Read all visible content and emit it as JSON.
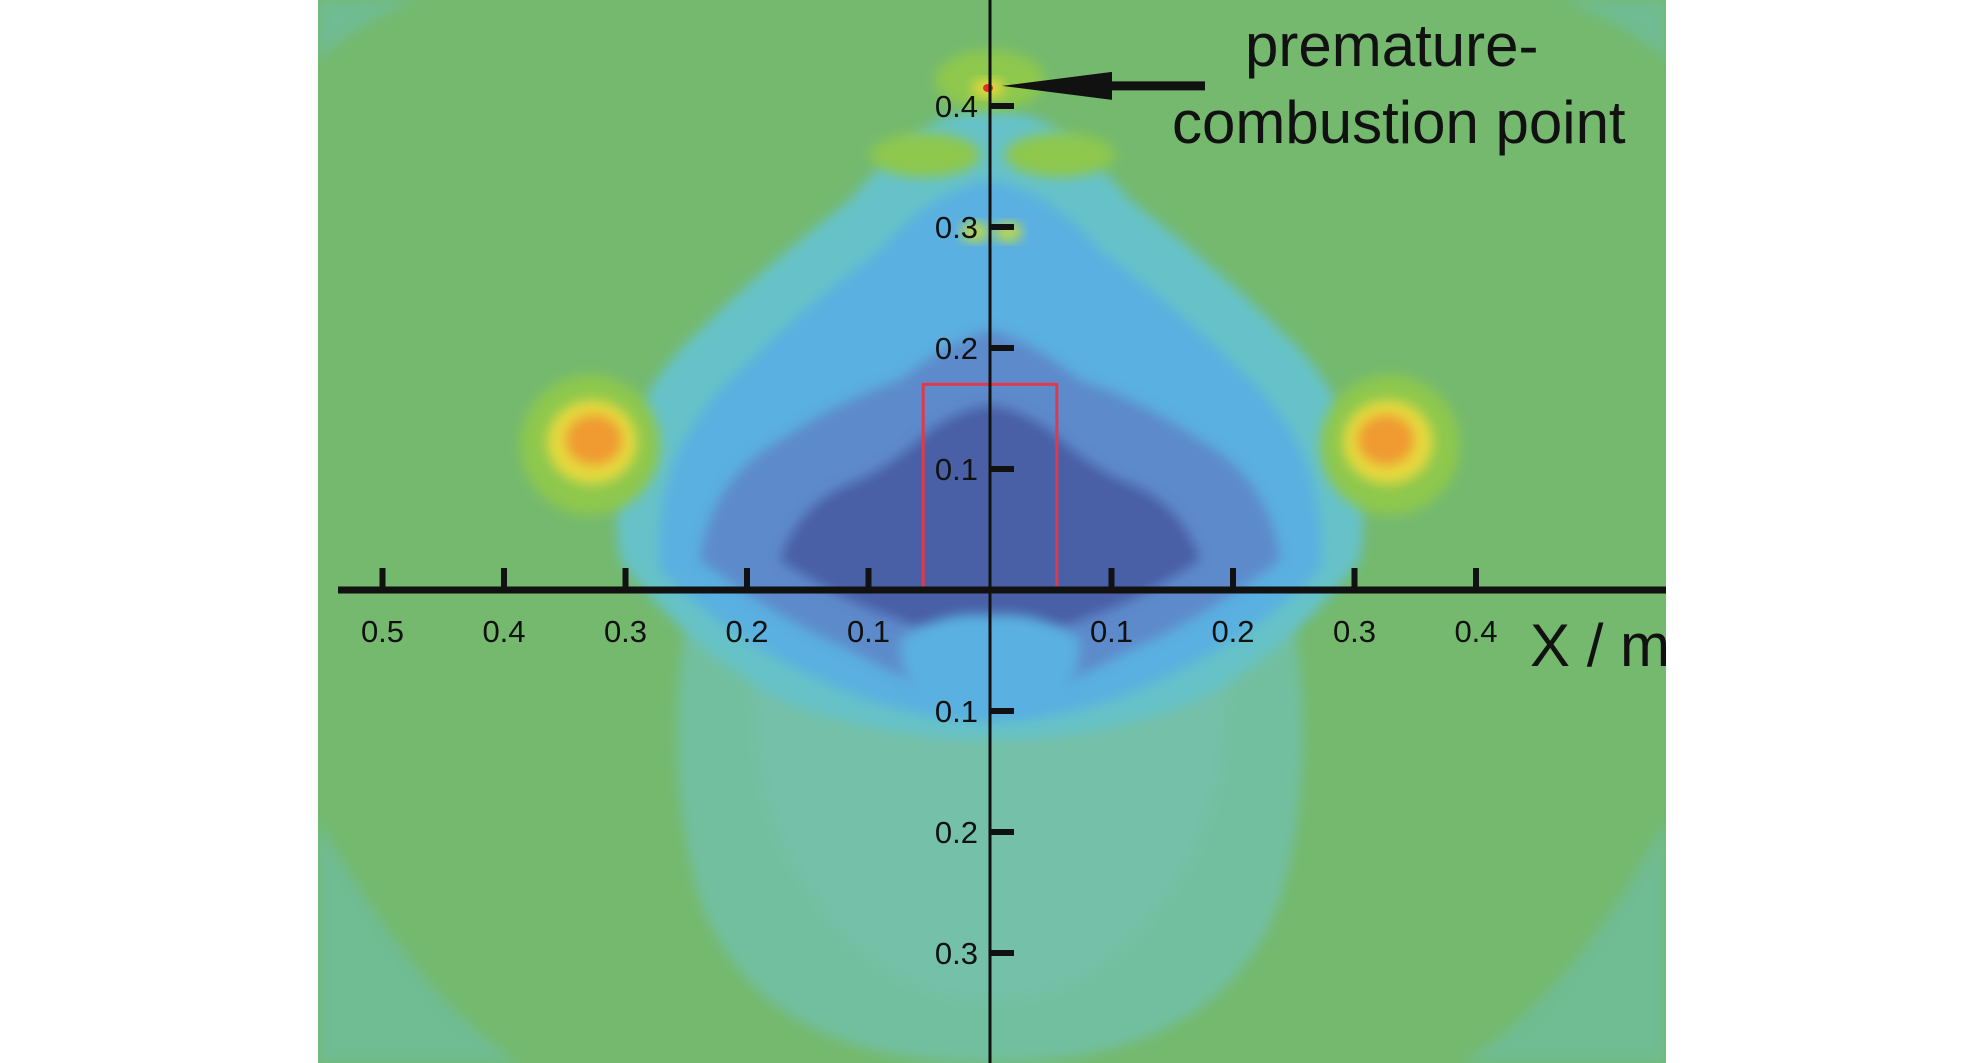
{
  "chart_data": {
    "type": "heatmap",
    "title": "",
    "xlabel": "X / m",
    "ylabel": "",
    "xlim": [
      -0.55,
      0.55
    ],
    "ylim": [
      -0.4,
      0.42
    ],
    "x_ticks": [
      -0.5,
      -0.4,
      -0.3,
      -0.2,
      -0.1,
      0.1,
      0.2,
      0.3,
      0.4
    ],
    "x_tick_labels": [
      "0.5",
      "0.4",
      "0.3",
      "0.2",
      "0.1",
      "0.1",
      "0.2",
      "0.3",
      "0.4"
    ],
    "y_ticks": [
      0.4,
      0.3,
      0.2,
      0.1,
      -0.1,
      -0.2,
      -0.3
    ],
    "y_tick_labels": [
      "0.4",
      "0.3",
      "0.2",
      "0.1",
      "0.1",
      "0.2",
      "0.3"
    ],
    "annotation": {
      "line1": "premature-",
      "line2": "combustion point",
      "x": 0.0,
      "y": 0.415
    },
    "hotspots": [
      {
        "x": -0.33,
        "y": 0.12,
        "level": "high"
      },
      {
        "x": 0.33,
        "y": 0.12,
        "level": "high"
      }
    ],
    "outlined_region": {
      "x0": -0.055,
      "x1": 0.055,
      "y0": 0.0,
      "y1": 0.17
    },
    "grid": false,
    "colors": {
      "background": "#74b96e",
      "low": "#4a5fa6",
      "mid_low": "#5d8acb",
      "mid": "#5ab0e0",
      "high": "#f09a30",
      "peak": "#e83020",
      "outline": "#e0394a",
      "axis": "#111111"
    }
  }
}
